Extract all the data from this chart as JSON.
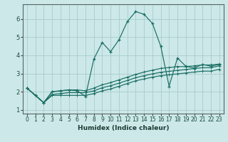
{
  "xlabel": "Humidex (Indice chaleur)",
  "bg_color": "#cce8e8",
  "grid_color": "#aacccc",
  "line_color": "#1a6e64",
  "xlim": [
    -0.5,
    23.5
  ],
  "ylim": [
    0.8,
    6.8
  ],
  "xticks": [
    0,
    1,
    2,
    3,
    4,
    5,
    6,
    7,
    8,
    9,
    10,
    11,
    12,
    13,
    14,
    15,
    16,
    17,
    18,
    19,
    20,
    21,
    22,
    23
  ],
  "yticks": [
    1,
    2,
    3,
    4,
    5,
    6
  ],
  "series": [
    [
      2.2,
      1.8,
      1.4,
      2.0,
      2.05,
      2.1,
      2.05,
      1.75,
      3.8,
      4.7,
      4.2,
      4.85,
      5.85,
      6.4,
      6.25,
      5.75,
      4.5,
      2.3,
      3.85,
      3.4,
      3.3,
      3.5,
      3.4,
      3.5
    ],
    [
      2.2,
      1.8,
      1.4,
      2.0,
      2.05,
      2.1,
      2.1,
      2.05,
      2.2,
      2.38,
      2.5,
      2.65,
      2.8,
      2.95,
      3.08,
      3.18,
      3.28,
      3.33,
      3.38,
      3.38,
      3.42,
      3.47,
      3.47,
      3.52
    ],
    [
      2.2,
      1.8,
      1.4,
      1.85,
      1.9,
      1.95,
      1.95,
      1.95,
      2.05,
      2.22,
      2.33,
      2.47,
      2.62,
      2.77,
      2.88,
      2.98,
      3.07,
      3.12,
      3.17,
      3.22,
      3.27,
      3.32,
      3.32,
      3.42
    ],
    [
      2.2,
      1.8,
      1.4,
      1.8,
      1.8,
      1.8,
      1.8,
      1.8,
      1.9,
      2.05,
      2.15,
      2.3,
      2.45,
      2.6,
      2.7,
      2.8,
      2.88,
      2.93,
      2.98,
      3.03,
      3.08,
      3.13,
      3.13,
      3.23
    ]
  ]
}
